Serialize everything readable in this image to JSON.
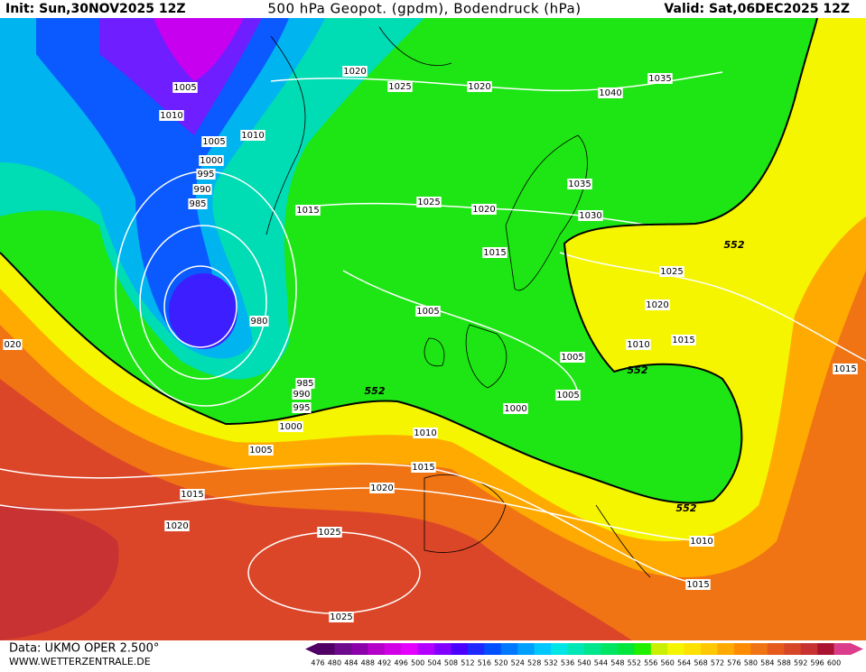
{
  "header": {
    "init": "Init: Sun,30NOV2025 12Z",
    "title": "500 hPa Geopot. (gpdm), Bodendruck (hPa)",
    "valid": "Valid: Sat,06DEC2025 12Z"
  },
  "isobar_labels": [
    "1005",
    "1010",
    "1010",
    "1005",
    "1000",
    "995",
    "990",
    "985",
    "1020",
    "1025",
    "1020",
    "1040",
    "1035",
    "1035",
    "1030",
    "1025",
    "1020",
    "1015",
    "1015",
    "1025",
    "1020",
    "1005",
    "980",
    "1010",
    "1015",
    "1015",
    "1005",
    "1005",
    "1000",
    "985",
    "990",
    "995",
    "1000",
    "1010",
    "1005",
    "1015",
    "1020",
    "1015",
    "1020",
    "1025",
    "1010",
    "1015",
    "1025",
    "020"
  ],
  "geopotential_labels": [
    "552",
    "552",
    "552",
    "552"
  ],
  "legend": {
    "values": [
      476,
      480,
      484,
      488,
      492,
      496,
      500,
      504,
      508,
      512,
      516,
      520,
      524,
      528,
      532,
      536,
      540,
      544,
      548,
      552,
      556,
      560,
      564,
      568,
      572,
      576,
      580,
      584,
      588,
      592,
      596,
      600
    ],
    "colors": [
      "#500064",
      "#6e0a8c",
      "#8c00aa",
      "#b400c8",
      "#d200e6",
      "#e600ff",
      "#b400ff",
      "#8200ff",
      "#4b00ff",
      "#1e28ff",
      "#0050ff",
      "#0078ff",
      "#00a0ff",
      "#00c8ff",
      "#00e6e6",
      "#00e6b4",
      "#00e68c",
      "#00e664",
      "#00e63c",
      "#1ef000",
      "#c8f000",
      "#f5f500",
      "#ffe100",
      "#ffc800",
      "#ffaa00",
      "#ff8c00",
      "#f07314",
      "#e65a1e",
      "#d74628",
      "#c83232",
      "#aa1432",
      "#dc3c8c"
    ]
  },
  "footer": {
    "data": "Data: UKMO OPER 2.500°",
    "site": "WWW.WETTERZENTRALE.DE"
  }
}
